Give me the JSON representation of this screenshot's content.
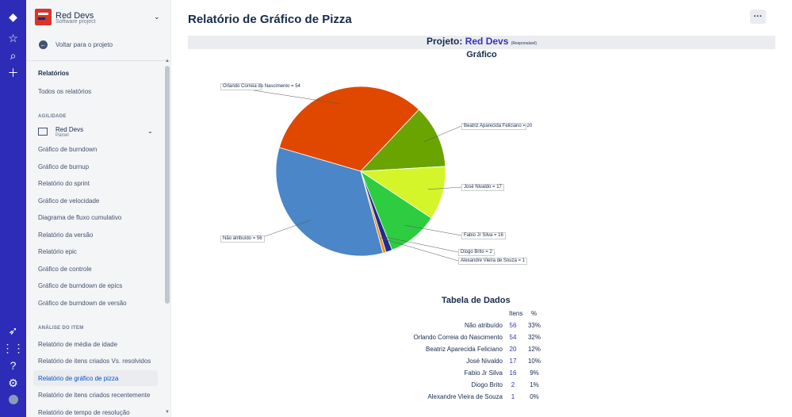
{
  "project": {
    "name": "Red Devs",
    "type": "Software project"
  },
  "sidebar": {
    "back": "Voltar para o projeto",
    "reports_heading": "Relatórios",
    "all_reports": "Todos os relatórios",
    "agility_heading": "AGILIDADE",
    "board": {
      "name": "Red Devs",
      "sub": "Painel"
    },
    "agility_items": [
      "Gráfico de burndown",
      "Gráfico de burnup",
      "Relatório do sprint",
      "Gráfico de velocidade",
      "Diagrama de fluxo cumulativo",
      "Relatório da versão",
      "Relatório epic",
      "Gráfico de controle",
      "Gráfico de burndown de epics",
      "Gráfico de burndown de versão"
    ],
    "analysis_heading": "ANÁLISE DO ITEM",
    "analysis_items": [
      "Relatório de média de idade",
      "Relatório de itens criados Vs. resolvidos",
      "Relatório de gráfico de pizza",
      "Relatório de itens criados recentemente",
      "Relatório de tempo de resolução"
    ]
  },
  "page": {
    "title": "Relatório de Gráfico de Pizza",
    "project_label": "Projeto:",
    "project_name": "Red Devs",
    "project_role": "(Responsável)",
    "chart_title": "Gráfico",
    "table_title": "Tabela de Dados",
    "col_items": "Itens",
    "col_pct": "%"
  },
  "chart_data": {
    "type": "pie",
    "categories": [
      "Não atribuído",
      "Orlando Correia do Nascimento",
      "Beatriz Aparecida Feliciano",
      "José Nivaldo",
      "Fabio Jr Silva",
      "Diogo Brito",
      "Alexandre Vieira de Souza"
    ],
    "values": [
      56,
      54,
      20,
      17,
      16,
      2,
      1
    ],
    "percents": [
      "33%",
      "32%",
      "12%",
      "10%",
      "9%",
      "1%",
      "0%"
    ],
    "labels": [
      "Não atribuído = 56",
      "Orlando Correia do Nascimento = 54",
      "Beatriz Aparecida Feliciano = 20",
      "José Nivaldo = 17",
      "Fabio Jr Silva = 16",
      "Diogo Brito = 2",
      "Alexandre Vieira de Souza = 1"
    ],
    "colors": [
      "#4a86c8",
      "#e04800",
      "#6aa400",
      "#d4f52a",
      "#2ecc40",
      "#1f2c8a",
      "#f08a24"
    ]
  }
}
